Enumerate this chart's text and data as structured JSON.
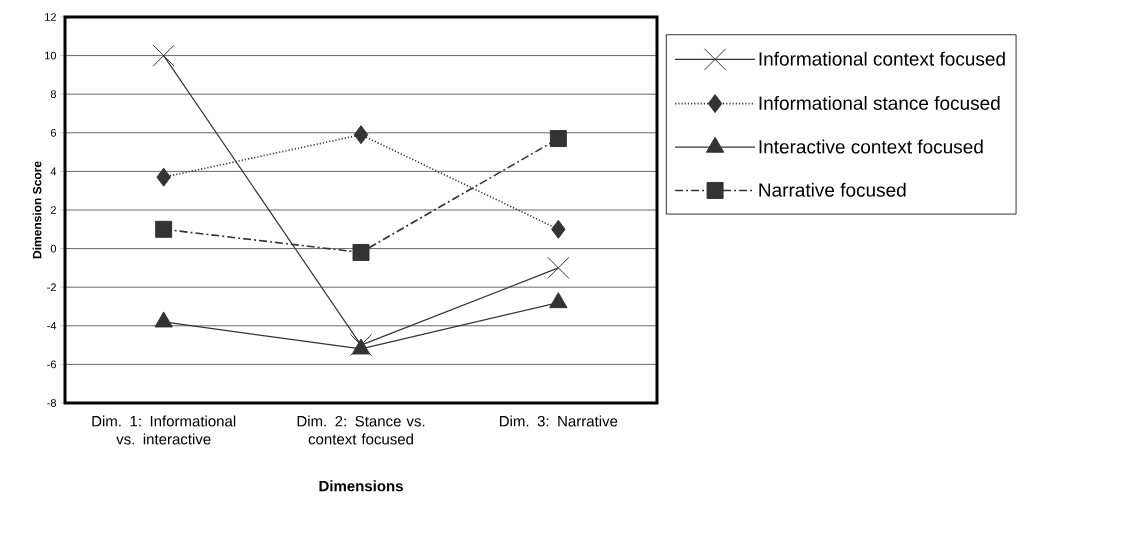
{
  "chart_data": {
    "type": "line",
    "xlabel": "Dimensions",
    "ylabel": "Dimension Score",
    "categories": [
      "Dim. 1: Informational vs. interactive",
      "Dim. 2: Stance vs. context focused",
      "Dim. 3: Narrative"
    ],
    "series": [
      {
        "name": "Informational context focused",
        "color": "#333333",
        "values": [
          10,
          -5,
          -1
        ],
        "marker": "cross",
        "line_style": "solid"
      },
      {
        "name": "Informational stance focused",
        "color": "#333333",
        "values": [
          3.7,
          5.9,
          1.0
        ],
        "marker": "diamond",
        "line_style": "dotted"
      },
      {
        "name": "Interactive context focused",
        "color": "#333333",
        "values": [
          -3.8,
          -5.2,
          -2.8
        ],
        "marker": "triangle",
        "line_style": "solid"
      },
      {
        "name": "Narrative focused",
        "color": "#333333",
        "values": [
          1.0,
          -0.2,
          5.7
        ],
        "marker": "square",
        "line_style": "dashed"
      }
    ],
    "ylim": [
      -8,
      12
    ],
    "yticks": [
      -8,
      -6,
      -4,
      -2,
      0,
      2,
      4,
      6,
      8,
      10,
      12
    ],
    "grid": "y",
    "legend": "right"
  }
}
